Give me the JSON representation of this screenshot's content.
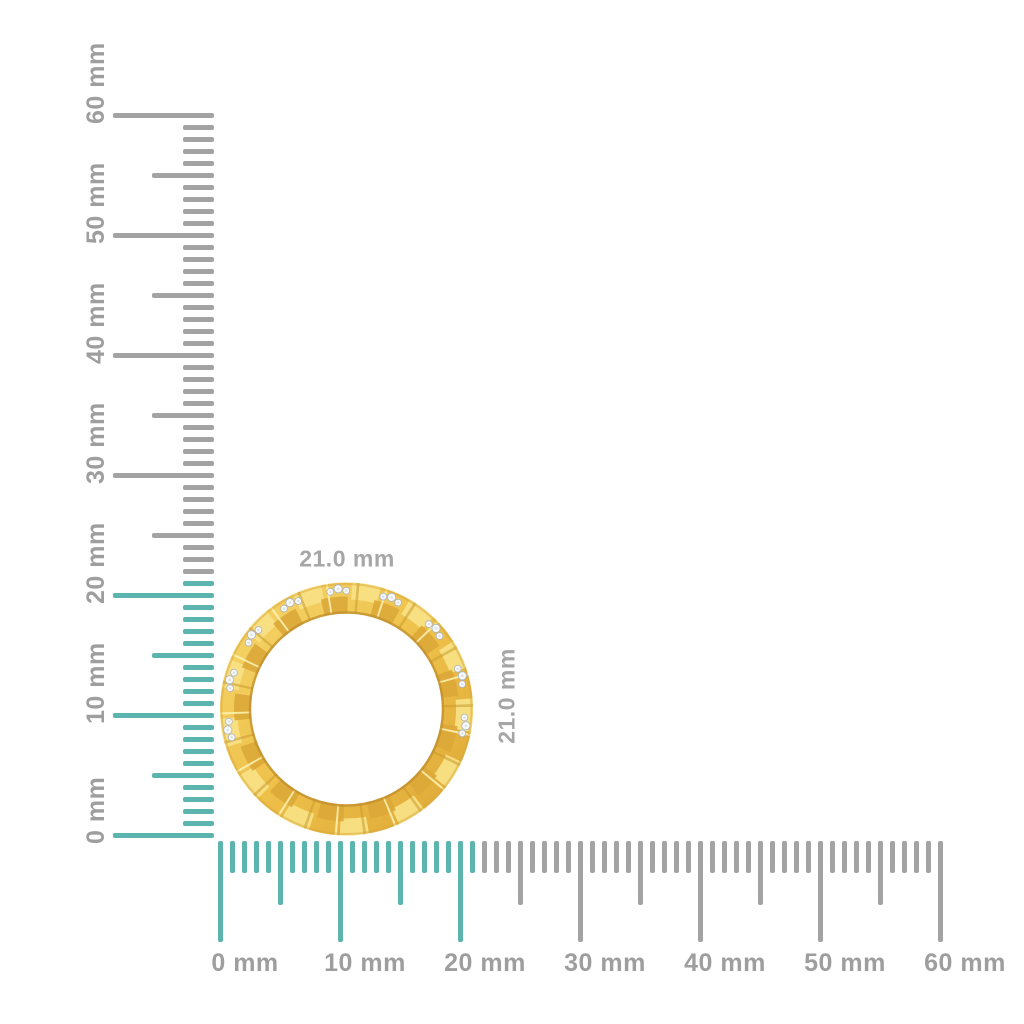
{
  "subject": {
    "name": "diamond-gold-ring-top-view"
  },
  "measurement": {
    "width_label": "21.0 mm",
    "height_label": "21.0 mm"
  },
  "rulers": {
    "unit": "mm",
    "vertical": {
      "min_mm": 0,
      "max_mm": 60,
      "label_step_mm": 10,
      "half_step_mm": 5,
      "minor_step_mm": 1,
      "highlight_extent_mm": 21,
      "labels": [
        "0 mm",
        "10 mm",
        "20 mm",
        "30 mm",
        "40 mm",
        "50 mm",
        "60 mm"
      ]
    },
    "horizontal": {
      "min_mm": 0,
      "max_mm": 60,
      "label_step_mm": 10,
      "half_step_mm": 5,
      "minor_step_mm": 1,
      "highlight_extent_mm": 21,
      "labels": [
        "0 mm",
        "10 mm",
        "20 mm",
        "30 mm",
        "40 mm",
        "50 mm",
        "60 mm"
      ]
    }
  },
  "colors": {
    "background": "#FFFFFF",
    "tick_highlight": "#5CB4AF",
    "tick_gray": "#A3A3A3",
    "ruler_label_gray": "#9E9E9E",
    "dim_label_gray": "#A6A6A6",
    "gold_base": "#EEC14A",
    "gold_light": "#F8E084",
    "gold_dark": "#DCA939",
    "gold_seam_highlight": "#FDF3B3",
    "gold_inner_shadow": "#C08E2B",
    "diamond_white": "#F6F8FA",
    "diamond_edge": "#ABB4BD"
  }
}
